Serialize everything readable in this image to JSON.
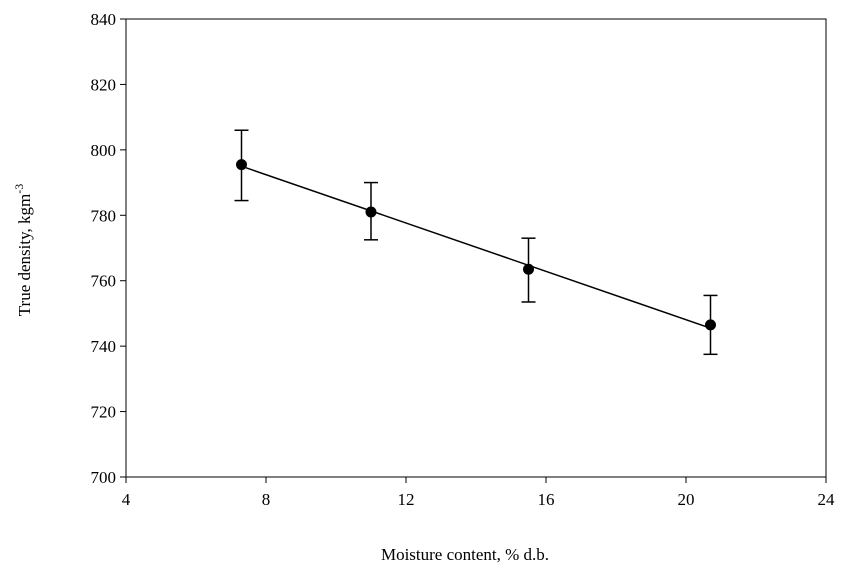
{
  "chart_data": {
    "type": "scatter",
    "title": "",
    "xlabel": "Moisture content, % d.b.",
    "ylabel_main": "True density, kgm",
    "ylabel_sup": "-3",
    "xlim": [
      4,
      24
    ],
    "ylim": [
      700,
      840
    ],
    "xticks": [
      4,
      8,
      12,
      16,
      20,
      24
    ],
    "yticks": [
      700,
      720,
      740,
      760,
      780,
      800,
      820,
      840
    ],
    "grid": false,
    "legend": "none",
    "series": [
      {
        "points": [
          {
            "x": 7.3,
            "y": 795.5,
            "err_low": 784.5,
            "err_high": 806.0
          },
          {
            "x": 11.0,
            "y": 781.0,
            "err_low": 772.5,
            "err_high": 790.0
          },
          {
            "x": 15.5,
            "y": 763.5,
            "err_low": 753.5,
            "err_high": 773.0
          },
          {
            "x": 20.7,
            "y": 746.5,
            "err_low": 737.5,
            "err_high": 755.5
          }
        ],
        "trendline": {
          "x_start": 7.3,
          "y_start": 795.0,
          "x_end": 20.7,
          "y_end": 745.5
        }
      }
    ]
  }
}
